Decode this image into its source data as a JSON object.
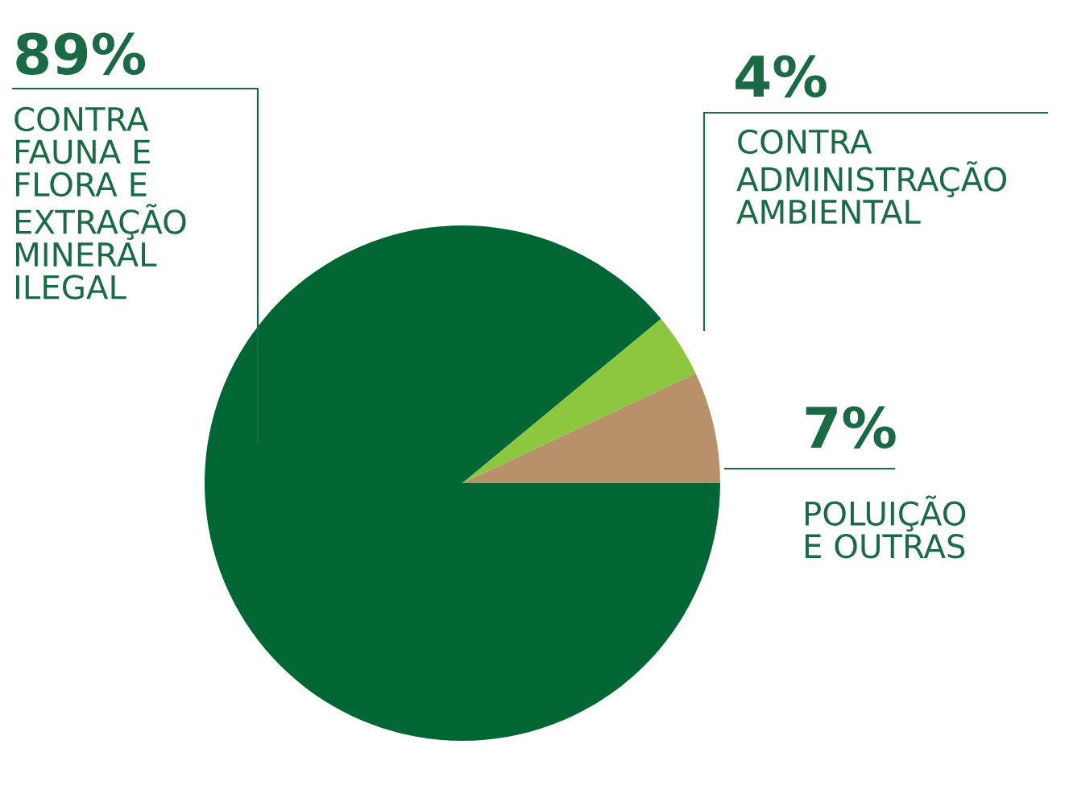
{
  "chart_data": {
    "type": "pie",
    "categories": [
      "CONTRA\nFAUNA E\nFLORA E\nEXTRAÇÃO\nMINERAL\nILEGAL",
      "CONTRA\nADMINISTRAÇÃO\nAMBIENTAL",
      "POLUIÇÃO\nE OUTRAS"
    ],
    "values": [
      89,
      4,
      7
    ],
    "value_labels": [
      "89%",
      "4%",
      "7%"
    ],
    "colors": [
      "#006633",
      "#8dc63f",
      "#b8916b"
    ],
    "legend": false
  }
}
